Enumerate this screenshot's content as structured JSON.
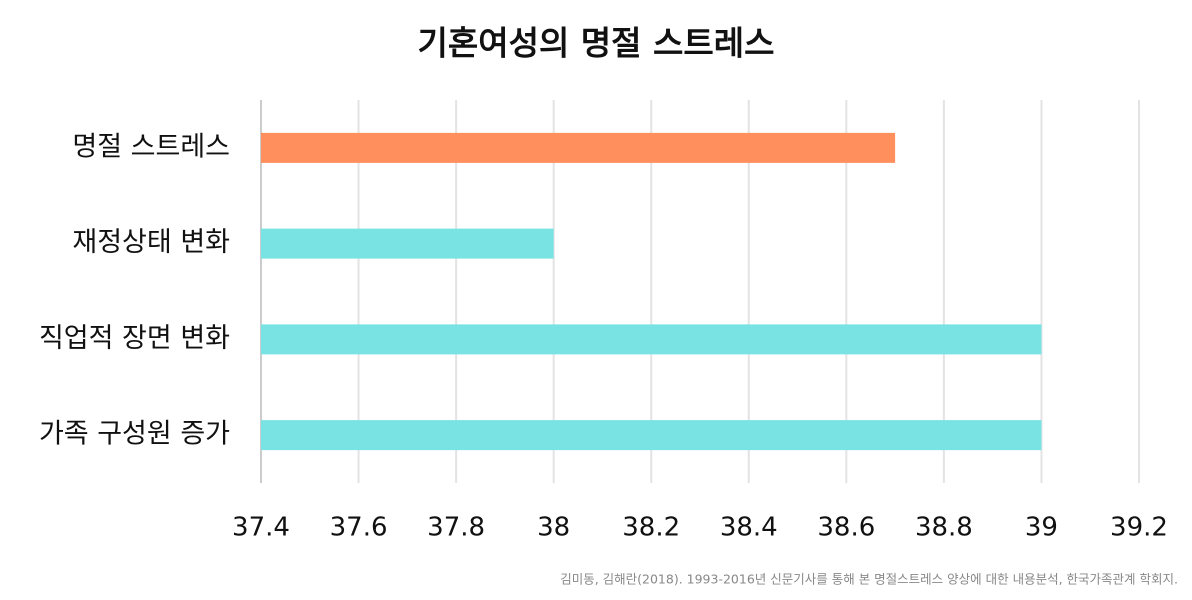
{
  "chart_data": {
    "type": "barh",
    "title": "기혼여성의 명절 스트레스",
    "categories": [
      "명절 스트레스",
      "재정상태 변화",
      "직업적 장면 변화",
      "가족 구성원 증가"
    ],
    "values": [
      38.7,
      38.0,
      39.0,
      39.0
    ],
    "colors": [
      "#ff8f5c",
      "#79e3e3",
      "#79e3e3",
      "#79e3e3"
    ],
    "xlim": [
      37.4,
      39.2
    ],
    "xticks": [
      37.4,
      37.6,
      37.8,
      38,
      38.2,
      38.4,
      38.6,
      38.8,
      39,
      39.2
    ],
    "grid": true,
    "source": "김미동, 김해란(2018). 1993-2016년 신문기사를 통해 본 명절스트레스 양상에 대한 내용분석, 한국가족관계 학회지."
  }
}
